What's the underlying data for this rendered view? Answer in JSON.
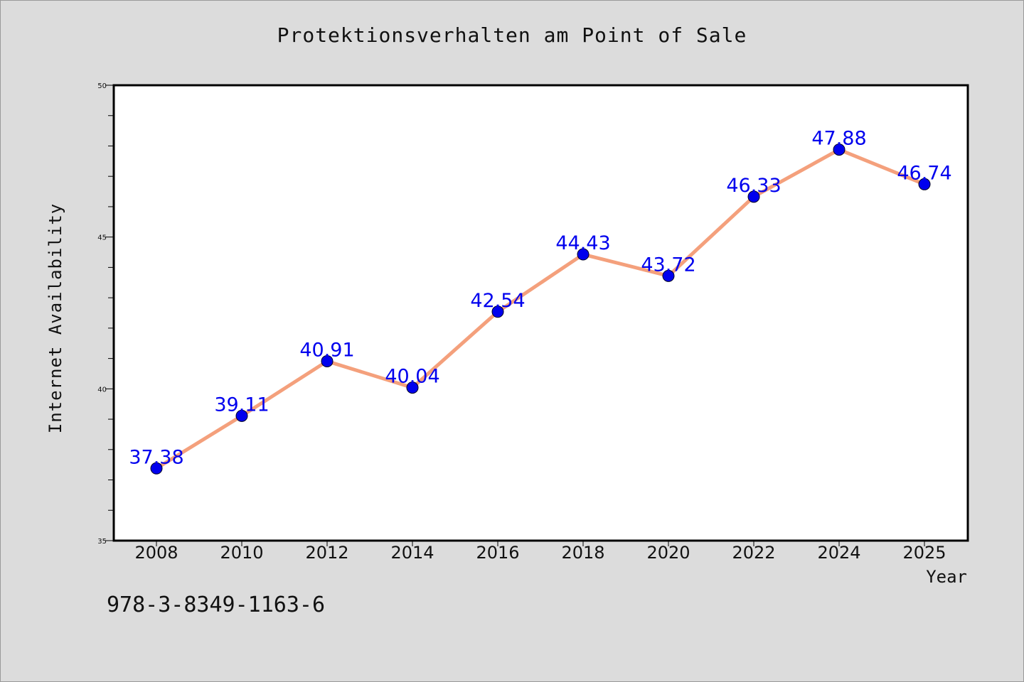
{
  "chart_data": {
    "type": "line",
    "title": "Protektionsverhalten am Point of Sale",
    "xlabel": "Year",
    "ylabel": "Internet Availability",
    "x": [
      "2008",
      "2010",
      "2012",
      "2014",
      "2016",
      "2018",
      "2020",
      "2022",
      "2024",
      "2025"
    ],
    "series": [
      {
        "values": [
          37.38,
          39.11,
          40.91,
          40.04,
          42.54,
          44.43,
          43.72,
          46.33,
          47.88,
          46.74
        ],
        "line_color": "#f4a07c",
        "marker_color": "#0000ee",
        "label_color": "#0000ee"
      }
    ],
    "ylim": [
      35,
      50
    ],
    "yticks": [
      35,
      40,
      45,
      50
    ],
    "ytick_labels": [
      "35",
      "40",
      "45",
      "50"
    ],
    "grid": false,
    "data_labels": [
      "37.38",
      "39.11",
      "40.91",
      "40.04",
      "42.54",
      "44.43",
      "43.72",
      "46.33",
      "47.88",
      "46.74"
    ]
  },
  "footer": {
    "code": "978-3-8349-1163-6"
  }
}
